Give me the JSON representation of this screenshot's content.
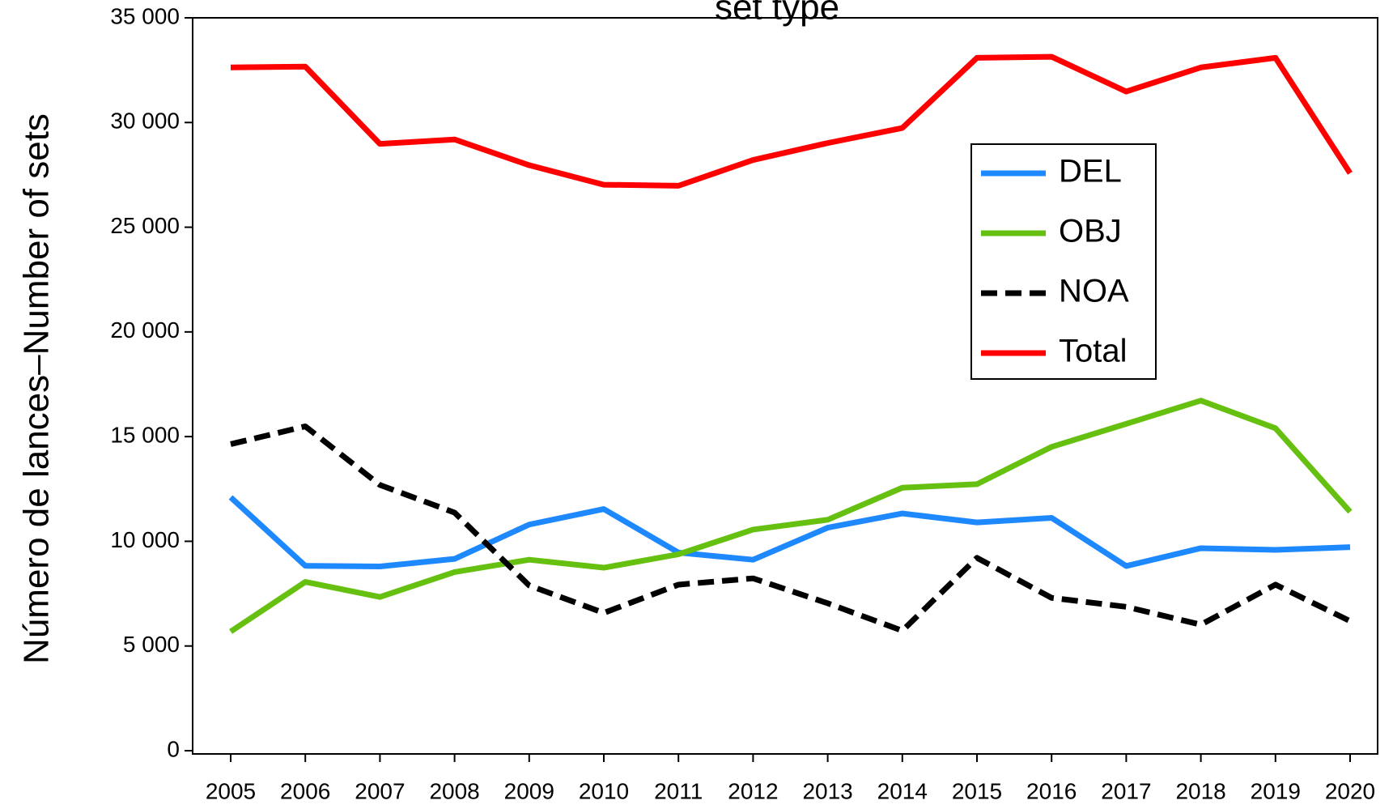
{
  "chart_data": {
    "type": "line",
    "title": "set type",
    "y_label": "Número de lances–Number of sets",
    "categories": [
      "2005",
      "2006",
      "2007",
      "2008",
      "2009",
      "2010",
      "2011",
      "2012",
      "2013",
      "2014",
      "2015",
      "2016",
      "2017",
      "2018",
      "2019",
      "2020"
    ],
    "series": [
      {
        "name": "DEL",
        "color": "#1e88ff",
        "dashed": false,
        "values": [
          12100,
          8830,
          8800,
          9160,
          10800,
          11540,
          9460,
          9120,
          10650,
          11330,
          10900,
          11120,
          8820,
          9670,
          9590,
          9720
        ]
      },
      {
        "name": "OBJ",
        "color": "#66c010",
        "dashed": false,
        "values": [
          5690,
          8060,
          7340,
          8530,
          9120,
          8740,
          9380,
          10560,
          11030,
          12560,
          12730,
          14510,
          15610,
          16720,
          15400,
          11410
        ]
      },
      {
        "name": "NOA",
        "color": "#000000",
        "dashed": true,
        "values": [
          14640,
          15490,
          12690,
          11370,
          7890,
          6580,
          7930,
          8230,
          7040,
          5730,
          9210,
          7300,
          6870,
          6020,
          7930,
          6190
        ]
      },
      {
        "name": "Total",
        "color": "#ff0000",
        "dashed": false,
        "values": [
          32630,
          32670,
          28980,
          29190,
          27960,
          27030,
          26980,
          28210,
          29020,
          29740,
          33090,
          33140,
          31480,
          32630,
          33090,
          27580
        ]
      }
    ],
    "ylim": [
      0,
      35000
    ],
    "yticks": [
      0,
      {
        "value": 5000,
        "label": "5 000"
      },
      {
        "value": 10000,
        "label": "10 000"
      },
      {
        "value": 15000,
        "label": "15 000"
      },
      {
        "value": 20000,
        "label": "20 000"
      },
      {
        "value": 25000,
        "label": "25 000"
      },
      {
        "value": 30000,
        "label": "30 000"
      },
      {
        "value": 35000,
        "label": "35 000"
      }
    ],
    "grid": false
  }
}
